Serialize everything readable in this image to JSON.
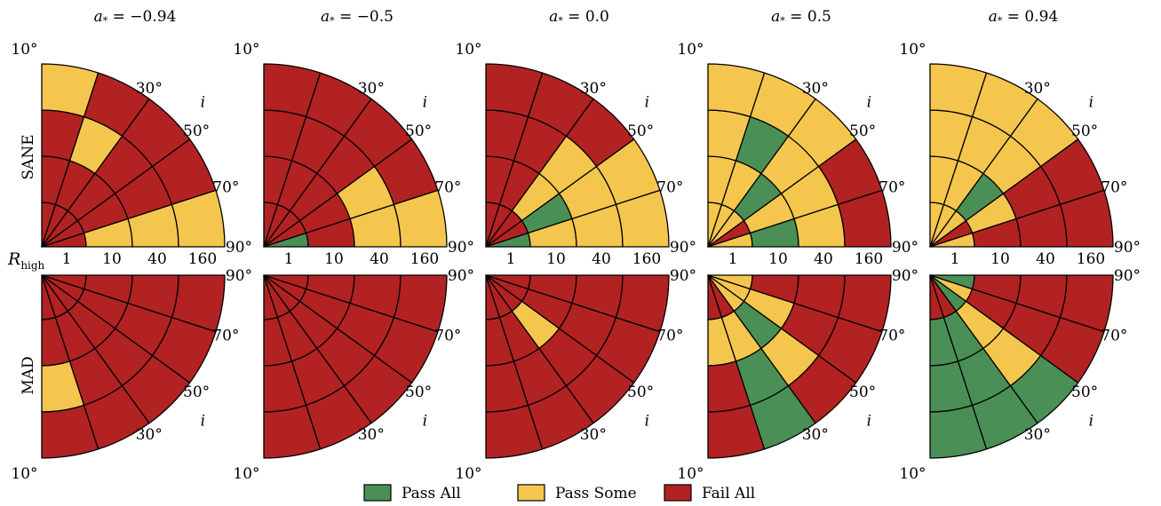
{
  "chart_data": {
    "type": "polar-grid",
    "row_labels": [
      "SANE",
      "MAD"
    ],
    "radial_axis_label": "R",
    "radial_axis_label_sub": "high",
    "radial_ticks": [
      "1",
      "10",
      "40",
      "160"
    ],
    "angle_axis_label": "i",
    "angle_ticks": [
      "10°",
      "30°",
      "50°",
      "70°",
      "90°"
    ],
    "cell_layout": {
      "rings": 4,
      "sectors": 5,
      "sector_order": "index 0 = 10° sector, index 4 = 90° sector",
      "ring_order": "index 0 = innermost (R_high = 1), index 3 = outermost (R_high = 160)"
    },
    "categories": {
      "P": {
        "label": "Pass All",
        "color": "#4a8f55"
      },
      "S": {
        "label": "Pass Some",
        "color": "#f5c64e"
      },
      "F": {
        "label": "Fail All",
        "color": "#b22222"
      }
    },
    "panels": [
      {
        "spin": "a* = −0.94",
        "title_main": "a",
        "title_rest": " = −0.94",
        "model": "SANE",
        "cells": [
          [
            "F",
            "F",
            "F",
            "S"
          ],
          [
            "F",
            "F",
            "S",
            "F"
          ],
          [
            "F",
            "F",
            "F",
            "F"
          ],
          [
            "F",
            "F",
            "F",
            "F"
          ],
          [
            "F",
            "S",
            "S",
            "S"
          ]
        ]
      },
      {
        "spin": "a* = −0.5",
        "title_main": "a",
        "title_rest": " = −0.5",
        "model": "SANE",
        "cells": [
          [
            "F",
            "F",
            "F",
            "F"
          ],
          [
            "F",
            "F",
            "F",
            "F"
          ],
          [
            "F",
            "F",
            "F",
            "F"
          ],
          [
            "F",
            "F",
            "S",
            "F"
          ],
          [
            "P",
            "F",
            "S",
            "S"
          ]
        ]
      },
      {
        "spin": "a* = 0.0",
        "title_main": "a",
        "title_rest": " = 0.0",
        "model": "SANE",
        "cells": [
          [
            "F",
            "F",
            "F",
            "F"
          ],
          [
            "F",
            "F",
            "F",
            "F"
          ],
          [
            "F",
            "S",
            "S",
            "F"
          ],
          [
            "F",
            "P",
            "S",
            "S"
          ],
          [
            "P",
            "S",
            "S",
            "S"
          ]
        ]
      },
      {
        "spin": "a* = 0.5",
        "title_main": "a",
        "title_rest": " = 0.5",
        "model": "SANE",
        "cells": [
          [
            "S",
            "S",
            "S",
            "S"
          ],
          [
            "S",
            "S",
            "P",
            "S"
          ],
          [
            "S",
            "P",
            "S",
            "S"
          ],
          [
            "F",
            "S",
            "S",
            "F"
          ],
          [
            "S",
            "P",
            "S",
            "F"
          ]
        ]
      },
      {
        "spin": "a* = 0.94",
        "title_main": "a",
        "title_rest": " = 0.94",
        "model": "SANE",
        "cells": [
          [
            "S",
            "S",
            "S",
            "S"
          ],
          [
            "S",
            "S",
            "S",
            "S"
          ],
          [
            "S",
            "P",
            "S",
            "S"
          ],
          [
            "F",
            "S",
            "F",
            "F"
          ],
          [
            "S",
            "F",
            "F",
            "F"
          ]
        ]
      },
      {
        "spin": "a* = −0.94",
        "model": "MAD",
        "cells": [
          [
            "F",
            "F",
            "S",
            "F"
          ],
          [
            "F",
            "F",
            "F",
            "F"
          ],
          [
            "F",
            "F",
            "F",
            "F"
          ],
          [
            "F",
            "F",
            "F",
            "F"
          ],
          [
            "F",
            "F",
            "F",
            "F"
          ]
        ]
      },
      {
        "spin": "a* = −0.5",
        "model": "MAD",
        "cells": [
          [
            "F",
            "F",
            "F",
            "F"
          ],
          [
            "F",
            "F",
            "F",
            "F"
          ],
          [
            "F",
            "F",
            "F",
            "F"
          ],
          [
            "F",
            "F",
            "F",
            "F"
          ],
          [
            "F",
            "F",
            "F",
            "F"
          ]
        ]
      },
      {
        "spin": "a* = 0.0",
        "model": "MAD",
        "cells": [
          [
            "F",
            "F",
            "F",
            "F"
          ],
          [
            "F",
            "F",
            "F",
            "F"
          ],
          [
            "F",
            "S",
            "F",
            "F"
          ],
          [
            "F",
            "F",
            "F",
            "F"
          ],
          [
            "F",
            "F",
            "F",
            "F"
          ]
        ]
      },
      {
        "spin": "a* = 0.5",
        "model": "MAD",
        "cells": [
          [
            "F",
            "S",
            "F",
            "F"
          ],
          [
            "F",
            "S",
            "P",
            "P"
          ],
          [
            "S",
            "P",
            "S",
            "F"
          ],
          [
            "S",
            "S",
            "F",
            "F"
          ],
          [
            "S",
            "F",
            "F",
            "F"
          ]
        ]
      },
      {
        "spin": "a* = 0.94",
        "model": "MAD",
        "cells": [
          [
            "F",
            "P",
            "P",
            "P"
          ],
          [
            "F",
            "P",
            "P",
            "P"
          ],
          [
            "P",
            "S",
            "S",
            "P"
          ],
          [
            "S",
            "F",
            "F",
            "F"
          ],
          [
            "P",
            "F",
            "F",
            "F"
          ]
        ]
      }
    ],
    "legend": {
      "placement": "bottom-center",
      "items": [
        {
          "key": "P",
          "label": "Pass All"
        },
        {
          "key": "S",
          "label": "Pass Some"
        },
        {
          "key": "F",
          "label": "Fail All"
        }
      ]
    }
  }
}
